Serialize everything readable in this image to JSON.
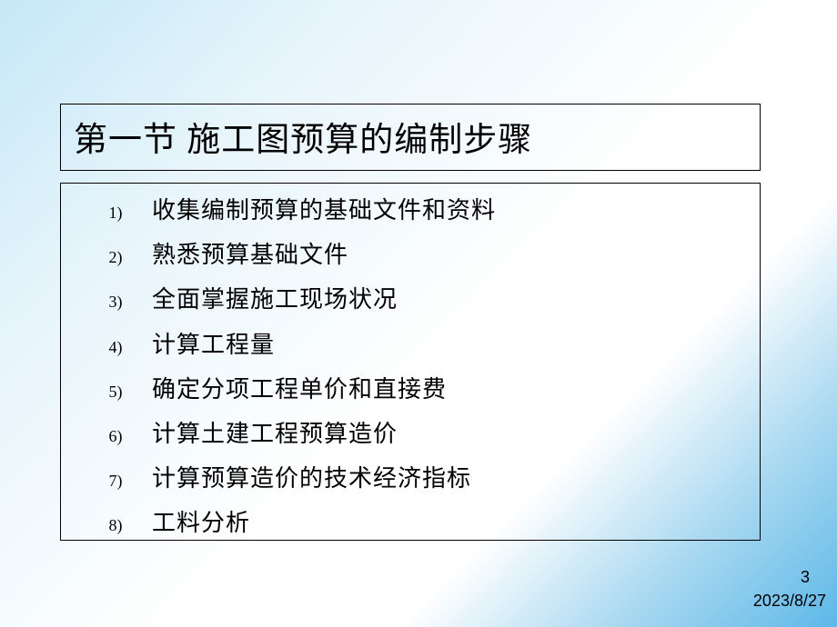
{
  "title": "第一节  施工图预算的编制步骤",
  "items": [
    {
      "num": "1)",
      "text": "收集编制预算的基础文件和资料"
    },
    {
      "num": "2)",
      "text": "熟悉预算基础文件"
    },
    {
      "num": "3)",
      "text": "全面掌握施工现场状况"
    },
    {
      "num": "4)",
      "text": "计算工程量"
    },
    {
      "num": "5)",
      "text": "确定分项工程单价和直接费"
    },
    {
      "num": "6)",
      "text": "计算土建工程预算造价"
    },
    {
      "num": "7)",
      "text": "计算预算造价的技术经济指标"
    },
    {
      "num": "8)",
      "text": "工料分析"
    }
  ],
  "page_number": "3",
  "date": "2023/8/27",
  "style": {
    "title_fontsize": 37,
    "item_fontsize": 26,
    "num_fontsize": 18,
    "footer_fontsize": 18,
    "title_border_color": "#000000",
    "content_border_color": "#000000",
    "text_color": "#000000",
    "bg_gradient_start": "#c5e8f7",
    "bg_gradient_mid": "#ffffff",
    "bg_gradient_end": "#5db8e8"
  }
}
